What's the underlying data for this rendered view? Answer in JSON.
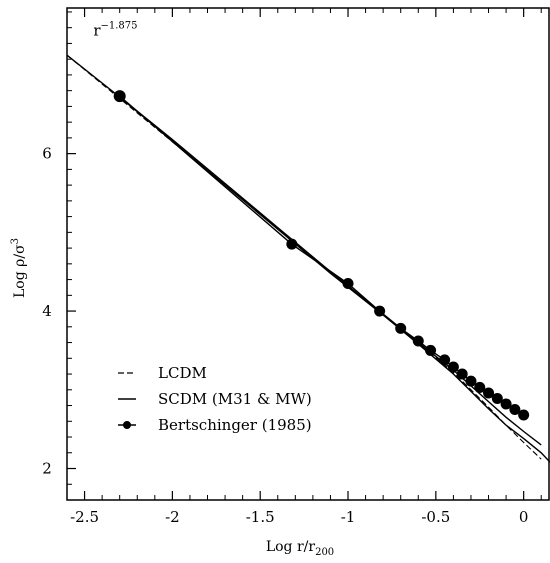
{
  "chart_data": {
    "type": "line",
    "title": "",
    "xlabel": "Log r/r",
    "xlabel_sub": "200",
    "ylabel": "Log ρ/σ",
    "ylabel_sup": "3",
    "xlim": [
      -2.6,
      0.15
    ],
    "ylim": [
      1.6,
      7.85
    ],
    "xticks": [
      -2.5,
      -2,
      -1.5,
      -1,
      -0.5,
      0
    ],
    "xtick_labels": [
      "-2.5",
      "-2",
      "-1.5",
      "-1",
      "-0.5",
      "0"
    ],
    "yticks": [
      2,
      4,
      6
    ],
    "ytick_labels": [
      "2",
      "4",
      "6"
    ],
    "annotation": {
      "base": "r",
      "exponent": "−1.875",
      "x": -2.45,
      "y": 7.5
    },
    "legend": {
      "position": "lower-left",
      "entries": [
        {
          "label": "LCDM",
          "style": "dashed"
        },
        {
          "label": "SCDM (M31 & MW)",
          "style": "solid"
        },
        {
          "label": "Bertschinger (1985)",
          "style": "solid-dot"
        }
      ]
    },
    "series": [
      {
        "name": "LCDM",
        "style": "dashed",
        "x": [
          -2.6,
          -2.3,
          -2.0,
          -1.7,
          -1.4,
          -1.1,
          -0.8,
          -0.6,
          -0.4,
          -0.3,
          -0.2,
          -0.1,
          0.0,
          0.1
        ],
        "y": [
          7.25,
          6.7,
          6.15,
          5.6,
          5.05,
          4.5,
          3.95,
          3.6,
          3.22,
          3.0,
          2.78,
          2.55,
          2.33,
          2.12
        ]
      },
      {
        "name": "SCDM (M31 & MW)",
        "style": "solid",
        "x": [
          -2.6,
          -2.3,
          -2.0,
          -1.7,
          -1.4,
          -1.1,
          -0.8,
          -0.6,
          -0.4,
          -0.3,
          -0.2,
          -0.1,
          0.0,
          0.1,
          0.15
        ],
        "y": [
          7.25,
          6.72,
          6.16,
          5.6,
          5.04,
          4.48,
          3.95,
          3.58,
          3.2,
          2.98,
          2.76,
          2.55,
          2.38,
          2.2,
          2.08
        ]
      },
      {
        "name": "SCDM (M31 & MW) #2",
        "style": "solid",
        "x": [
          -2.3,
          -2.0,
          -1.7,
          -1.4,
          -1.1,
          -0.8,
          -0.6,
          -0.4,
          -0.3,
          -0.2,
          -0.1,
          0.0,
          0.1
        ],
        "y": [
          6.72,
          6.18,
          5.62,
          5.06,
          4.5,
          3.96,
          3.6,
          3.25,
          3.05,
          2.85,
          2.65,
          2.47,
          2.3
        ]
      },
      {
        "name": "Bertschinger (1985)",
        "style": "solid-dot",
        "x": [
          -2.3,
          -1.32,
          -1.0,
          -0.82,
          -0.7,
          -0.6,
          -0.53,
          -0.45,
          -0.4,
          -0.35,
          -0.3,
          -0.25,
          -0.2,
          -0.15,
          -0.1,
          -0.05,
          0.0
        ],
        "y": [
          6.73,
          4.85,
          4.35,
          4.0,
          3.78,
          3.62,
          3.5,
          3.38,
          3.29,
          3.2,
          3.11,
          3.03,
          2.96,
          2.89,
          2.82,
          2.75,
          2.68
        ]
      }
    ]
  }
}
